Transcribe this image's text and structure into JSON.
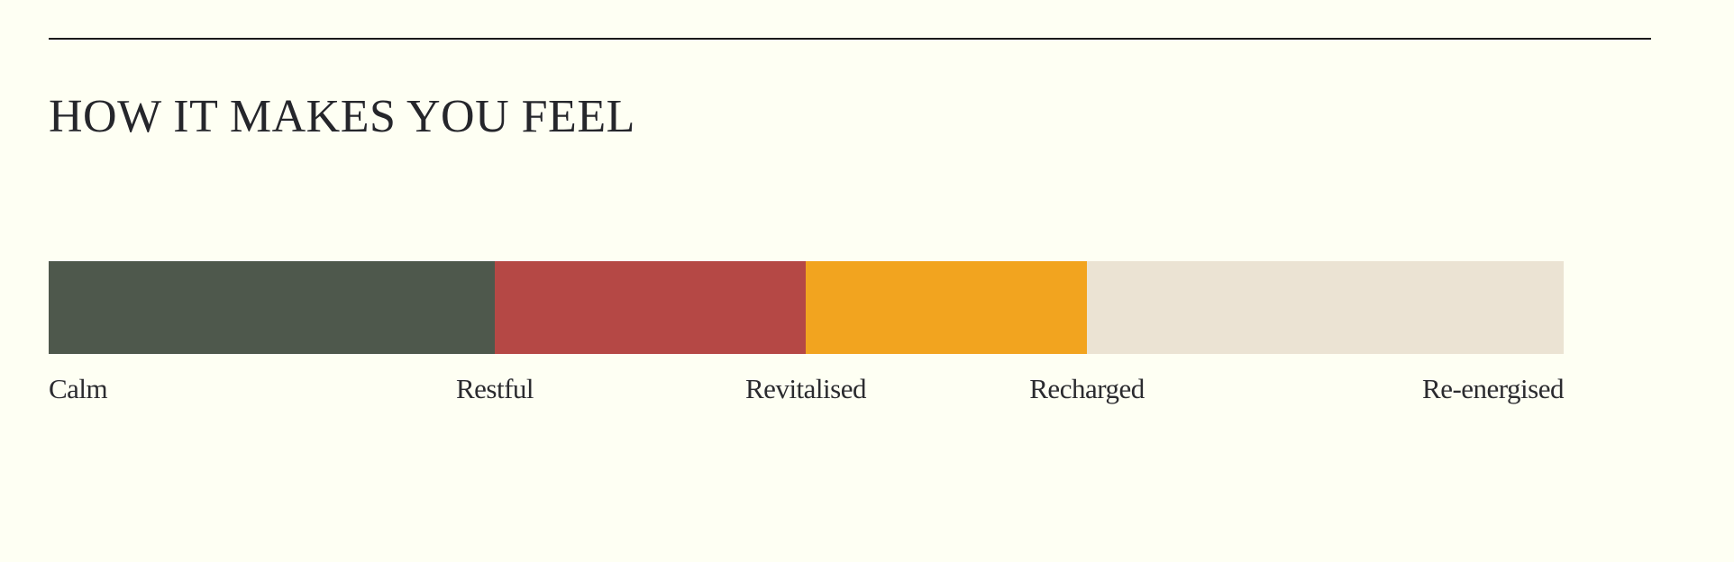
{
  "section": {
    "title": "HOW IT MAKES YOU FEEL"
  },
  "scale": {
    "segments": [
      {
        "name": "calm-to-restful",
        "color": "#4e584c"
      },
      {
        "name": "restful-to-revitalised",
        "color": "#b54845"
      },
      {
        "name": "revitalised-to-recharged",
        "color": "#f2a41f"
      },
      {
        "name": "recharged-to-re-energised",
        "color": "#ebe3d3"
      }
    ],
    "labels": [
      "Calm",
      "Restful",
      "Revitalised",
      "Recharged",
      "Re-energised"
    ]
  },
  "colors": {
    "background": "#fefff3",
    "text": "#25262b",
    "divider": "#1a1a1a"
  }
}
